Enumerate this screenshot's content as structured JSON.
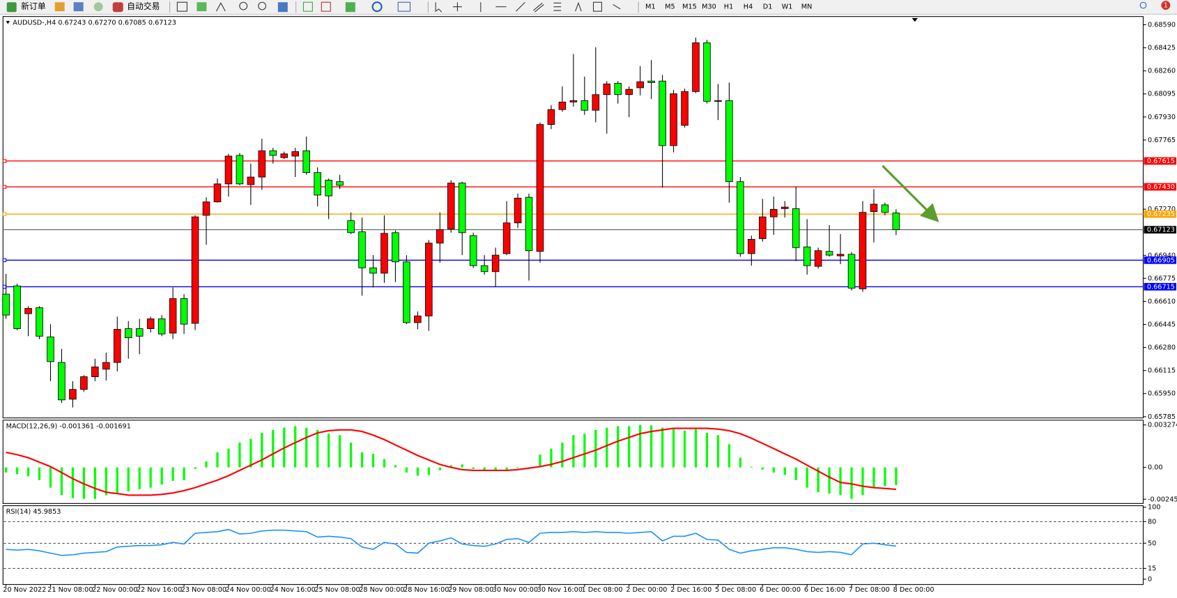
{
  "toolbar": {
    "new_order": "新订单",
    "auto_trading": "自动交易",
    "timeframes": [
      "M1",
      "M5",
      "M15",
      "M30",
      "H1",
      "H4",
      "D1",
      "W1",
      "MN"
    ],
    "notification_count": "1"
  },
  "chart_data": [
    {
      "type": "candlestick",
      "title": "AUDUSD-,H4  0.67243 0.67270 0.67085 0.67123",
      "categories": [
        "20 Nov 2022",
        null,
        null,
        null,
        "21 Nov 08:00",
        null,
        null,
        null,
        "22 Nov 00:00",
        null,
        null,
        null,
        "22 Nov 16:00",
        null,
        null,
        null,
        "23 Nov 08:00",
        null,
        null,
        null,
        "24 Nov 00:00",
        null,
        null,
        null,
        "24 Nov 16:00",
        null,
        null,
        null,
        "25 Nov 08:00",
        null,
        null,
        null,
        "28 Nov 00:00",
        null,
        null,
        null,
        "28 Nov 16:00",
        null,
        null,
        null,
        "29 Nov 08:00",
        null,
        null,
        null,
        "30 Nov 00:00",
        null,
        null,
        null,
        "30 Nov 16:00",
        null,
        null,
        null,
        "1 Dec 08:00",
        null,
        null,
        null,
        "2 Dec 00:00",
        null,
        null,
        null,
        "2 Dec 16:00",
        null,
        null,
        null,
        "5 Dec 08:00",
        null,
        null,
        null,
        "6 Dec 00:00",
        null,
        null,
        null,
        "6 Dec 16:00",
        null,
        null,
        null,
        "7 Dec 08:00",
        null,
        null,
        null,
        "8 Dec 00:00"
      ],
      "open": [
        0.66662,
        0.66721,
        0.66522,
        0.66565,
        0.66356,
        0.66173,
        0.6591,
        0.6598,
        0.66071,
        0.66125,
        0.66173,
        0.66415,
        0.66415,
        0.66415,
        0.66485,
        0.66383,
        0.6663,
        0.66453,
        0.67226,
        0.67322,
        0.67451,
        0.67655,
        0.67446,
        0.675,
        0.67688,
        0.67639,
        0.6765,
        0.67688,
        0.67532,
        0.67478,
        0.67467,
        0.67188,
        0.67108,
        0.6685,
        0.66812,
        0.67102,
        0.66893,
        0.66458,
        0.66506,
        0.67027,
        0.67129,
        0.67457,
        0.67081,
        0.66866,
        0.66823,
        0.66952,
        0.67172,
        0.67355,
        0.66968,
        0.67876,
        0.67983,
        0.68037,
        0.68047,
        0.67978,
        0.6809,
        0.68171,
        0.6809,
        0.68139,
        0.68187,
        0.68187,
        0.67725,
        0.6787,
        0.68112,
        0.68461,
        0.68042,
        0.68047,
        0.67467,
        0.66952,
        0.67059,
        0.67215,
        0.67274,
        0.67274,
        0.67,
        0.66861,
        0.66968,
        0.66936,
        0.66947,
        0.667,
        0.67253,
        0.67301,
        0.67243
      ],
      "high": [
        0.66807,
        0.66737,
        0.66576,
        0.66576,
        0.66447,
        0.6627,
        0.66039,
        0.66082,
        0.662,
        0.66243,
        0.66501,
        0.66469,
        0.66485,
        0.66501,
        0.66512,
        0.6671,
        0.66662,
        0.67226,
        0.67355,
        0.67489,
        0.67666,
        0.67672,
        0.67596,
        0.67774,
        0.67709,
        0.67682,
        0.67709,
        0.6779,
        0.67569,
        0.67489,
        0.67516,
        0.67247,
        0.6721,
        0.66941,
        0.67226,
        0.67118,
        0.66941,
        0.66538,
        0.67049,
        0.67247,
        0.67478,
        0.67467,
        0.67102,
        0.66941,
        0.66995,
        0.67328,
        0.67382,
        0.67382,
        0.67892,
        0.68015,
        0.68149,
        0.6838,
        0.68219,
        0.68429,
        0.68187,
        0.68187,
        0.68149,
        0.68294,
        0.68337,
        0.6823,
        0.68123,
        0.68133,
        0.68498,
        0.68482,
        0.68166,
        0.68176,
        0.675,
        0.67081,
        0.67344,
        0.6736,
        0.67328,
        0.6743,
        0.67199,
        0.66995,
        0.67156,
        0.67092,
        0.66963,
        0.67328,
        0.67414,
        0.67317,
        0.6727
      ],
      "low": [
        0.66485,
        0.66404,
        0.66361,
        0.6634,
        0.66039,
        0.65883,
        0.65851,
        0.65964,
        0.66039,
        0.66044,
        0.66109,
        0.662,
        0.66232,
        0.66388,
        0.66361,
        0.6634,
        0.66377,
        0.66404,
        0.67016,
        0.67317,
        0.6736,
        0.67441,
        0.67301,
        0.67408,
        0.67596,
        0.67629,
        0.675,
        0.67516,
        0.6729,
        0.67199,
        0.67414,
        0.67092,
        0.66651,
        0.6671,
        0.66743,
        0.66748,
        0.66447,
        0.6641,
        0.66399,
        0.66887,
        0.67102,
        0.66941,
        0.6685,
        0.66802,
        0.66716,
        0.66941,
        0.67135,
        0.66759,
        0.66887,
        0.67843,
        0.67967,
        0.68004,
        0.67945,
        0.67892,
        0.67811,
        0.68026,
        0.67929,
        0.68085,
        0.68058,
        0.67424,
        0.67677,
        0.67854,
        0.68101,
        0.68026,
        0.67908,
        0.67317,
        0.6693,
        0.66866,
        0.67038,
        0.67086,
        0.6721,
        0.66898,
        0.66802,
        0.66845,
        0.6693,
        0.66877,
        0.66689,
        0.66678,
        0.67032,
        0.67226,
        0.67085
      ],
      "close": [
        0.66512,
        0.66415,
        0.6656,
        0.66361,
        0.66179,
        0.65905,
        0.6598,
        0.66071,
        0.66141,
        0.66173,
        0.6641,
        0.6635,
        0.66361,
        0.66485,
        0.66377,
        0.6663,
        0.66447,
        0.67215,
        0.67322,
        0.67451,
        0.6765,
        0.67451,
        0.675,
        0.67688,
        0.67655,
        0.67666,
        0.67682,
        0.67532,
        0.67371,
        0.67365,
        0.67441,
        0.67102,
        0.6685,
        0.66812,
        0.67097,
        0.66893,
        0.66458,
        0.66506,
        0.67027,
        0.67124,
        0.67457,
        0.67102,
        0.66866,
        0.66823,
        0.66941,
        0.67172,
        0.67349,
        0.66973,
        0.67876,
        0.67983,
        0.68037,
        0.68047,
        0.67978,
        0.6809,
        0.68166,
        0.6809,
        0.68128,
        0.68182,
        0.68176,
        0.67725,
        0.68096,
        0.68112,
        0.68461,
        0.68042,
        0.68047,
        0.67467,
        0.66952,
        0.67054,
        0.67215,
        0.67269,
        0.67285,
        0.66995,
        0.66866,
        0.66973,
        0.66941,
        0.66947,
        0.66705,
        0.67247,
        0.67306,
        0.67247,
        0.67123
      ],
      "up_color": "#ff0000",
      "down_color": "#00ff00",
      "ylim": [
        0.65776,
        0.68649
      ],
      "yticks": [
        {
          "value": 0.6859,
          "label": "0.68590"
        },
        0.68425,
        {
          "value": 0.6826,
          "label": "0.68260"
        },
        0.68095,
        {
          "value": 0.6793,
          "label": "0.67930"
        },
        0.67765,
        {
          "value": 0.6727,
          "label": "0.67270"
        },
        {
          "value": 0.6694,
          "label": "0.66940"
        },
        0.66775,
        {
          "value": 0.6661,
          "label": "0.66610"
        },
        0.66445,
        {
          "value": 0.6628,
          "label": "0.66280"
        },
        0.66115,
        {
          "value": 0.6595,
          "label": "0.65950"
        },
        0.65785
      ],
      "levels": [
        {
          "value": 0.67615,
          "color": "#ff0000"
        },
        {
          "value": 0.6743,
          "label": "0.67430",
          "color": "#ff0000"
        },
        {
          "value": 0.67235,
          "color": "#ffa500"
        },
        {
          "value": 0.66905,
          "color": "#0000ff"
        },
        {
          "value": 0.66715,
          "color": "#0000ff"
        }
      ],
      "current_price": 0.67123
    },
    {
      "type": "macd",
      "title": "MACD(12,26,9) -0.001361 -0.001691",
      "histogram": [
        -0.0004,
        -0.00052,
        -0.00069,
        -0.00098,
        -0.00156,
        -0.00214,
        -0.00237,
        -0.00243,
        -0.00243,
        -0.00214,
        -0.00202,
        -0.00185,
        -0.00168,
        -0.00156,
        -0.00133,
        -0.00104,
        -0.00098,
        -0.00012,
        0.00046,
        0.00116,
        0.00145,
        0.00191,
        0.0022,
        0.00266,
        0.00289,
        0.00306,
        0.00318,
        0.00306,
        0.00289,
        0.0026,
        0.00249,
        0.00191,
        0.00116,
        0.00104,
        0.00064,
        0.00017,
        -0.0004,
        -0.00064,
        -0.00058,
        -0.00023,
        0.00017,
        0.00023,
        -0.00012,
        -0.00023,
        -0.00029,
        -0.00017,
        -6e-05,
        -0.00012,
        0.00098,
        0.00145,
        0.00191,
        0.00249,
        0.0026,
        0.00289,
        0.00306,
        0.00318,
        0.00318,
        0.00327,
        0.00324,
        0.00306,
        0.00295,
        0.00283,
        0.00295,
        0.00266,
        0.00249,
        0.00179,
        0.00075,
        6e-05,
        -0.00017,
        -0.0004,
        -0.00058,
        -0.00098,
        -0.00156,
        -0.00191,
        -0.00202,
        -0.00214,
        -0.00243,
        -0.00214,
        -0.00156,
        -0.00145,
        -0.001361
      ],
      "signal": [
        0.00116,
        0.00098,
        0.00075,
        0.0004,
        6e-05,
        -0.0004,
        -0.00087,
        -0.00127,
        -0.00162,
        -0.00191,
        -0.00202,
        -0.00214,
        -0.00214,
        -0.00214,
        -0.00208,
        -0.00197,
        -0.00179,
        -0.00156,
        -0.00127,
        -0.00098,
        -0.00064,
        -0.00023,
        0.00017,
        0.00058,
        0.00104,
        0.0015,
        0.00191,
        0.00231,
        0.00266,
        0.00283,
        0.00289,
        0.00289,
        0.00277,
        0.00249,
        0.00214,
        0.00173,
        0.00133,
        0.00092,
        0.00058,
        0.00023,
        0,
        -0.00017,
        -0.00023,
        -0.00023,
        -0.00023,
        -0.00023,
        -0.00017,
        -6e-05,
        6e-05,
        0.00023,
        0.00046,
        0.00075,
        0.00104,
        0.00133,
        0.00168,
        0.00202,
        0.00231,
        0.0026,
        0.00277,
        0.00289,
        0.00301,
        0.00301,
        0.00301,
        0.00301,
        0.00295,
        0.00283,
        0.0026,
        0.00225,
        0.00185,
        0.00145,
        0.00104,
        0.00064,
        0.00017,
        -0.00029,
        -0.00075,
        -0.00116,
        -0.00127,
        -0.00145,
        -0.00156,
        -0.00162,
        -0.001691
      ],
      "histogram_color": "#00ff00",
      "signal_color": "#ff0000",
      "ylim": [
        -0.00278,
        0.00364
      ],
      "yticks": [
        0.003274,
        {
          "value": 0,
          "label": "0.00"
        },
        -0.002453
      ]
    },
    {
      "type": "rsi",
      "title": "RSI(14) 45.9853",
      "values": [
        41.5,
        40.4,
        41.5,
        39.4,
        36.2,
        33.0,
        34.0,
        36.2,
        37.2,
        38.3,
        44.7,
        45.7,
        46.8,
        46.8,
        47.9,
        51.1,
        48.9,
        63.8,
        64.9,
        66.0,
        69.1,
        62.8,
        63.8,
        67.0,
        68.1,
        68.1,
        67.0,
        66.0,
        58.5,
        59.6,
        58.5,
        56.4,
        44.7,
        41.5,
        51.1,
        48.9,
        37.2,
        36.2,
        50.0,
        53.2,
        57.4,
        48.9,
        46.8,
        45.7,
        48.9,
        55.3,
        56.4,
        51.1,
        63.8,
        64.9,
        64.9,
        66.0,
        64.9,
        66.0,
        64.9,
        64.9,
        63.8,
        64.9,
        66.0,
        53.2,
        59.6,
        59.6,
        63.8,
        55.3,
        54.3,
        41.5,
        36.2,
        39.4,
        41.5,
        43.6,
        43.6,
        41.5,
        38.3,
        37.2,
        38.3,
        37.2,
        34.0,
        48.9,
        50.0,
        47.9,
        45.9853
      ],
      "color": "#1e90ff",
      "ylim": [
        -7.4,
        102.1
      ],
      "yticks": [
        100,
        80,
        50,
        15,
        0
      ],
      "levels": [
        80,
        50,
        15
      ]
    }
  ]
}
